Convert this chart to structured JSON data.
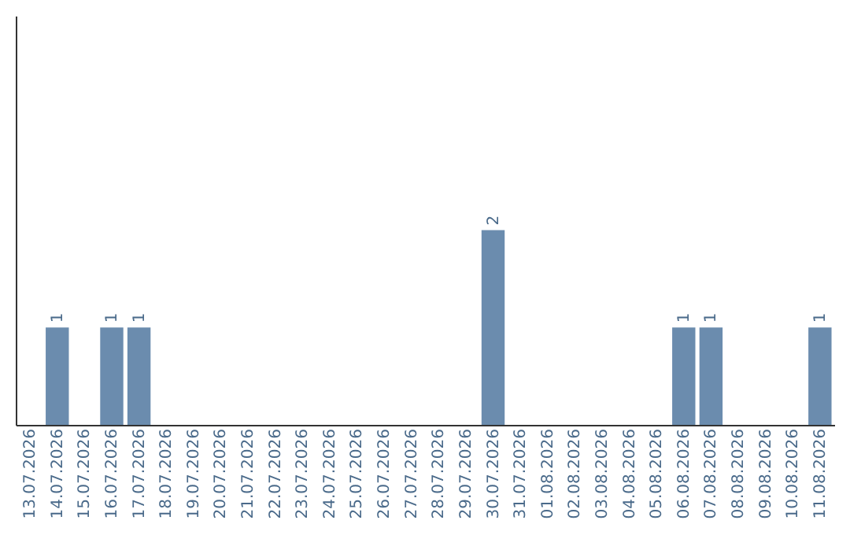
{
  "chart_data": {
    "type": "bar",
    "categories": [
      "13.07.2026",
      "14.07.2026",
      "15.07.2026",
      "16.07.2026",
      "17.07.2026",
      "18.07.2026",
      "19.07.2026",
      "20.07.2026",
      "21.07.2026",
      "22.07.2026",
      "23.07.2026",
      "24.07.2026",
      "25.07.2026",
      "26.07.2026",
      "27.07.2026",
      "28.07.2026",
      "29.07.2026",
      "30.07.2026",
      "31.07.2026",
      "01.08.2026",
      "02.08.2026",
      "03.08.2026",
      "04.08.2026",
      "05.08.2026",
      "06.08.2026",
      "07.08.2026",
      "08.08.2026",
      "09.08.2026",
      "10.08.2026",
      "11.08.2026"
    ],
    "values": [
      0,
      1,
      0,
      1,
      1,
      0,
      0,
      0,
      0,
      0,
      0,
      0,
      0,
      0,
      0,
      0,
      0,
      2,
      0,
      0,
      0,
      0,
      0,
      0,
      1,
      1,
      0,
      0,
      0,
      1
    ],
    "value_labels": [
      null,
      "1",
      null,
      "1",
      "1",
      null,
      null,
      null,
      null,
      null,
      null,
      null,
      null,
      null,
      null,
      null,
      null,
      "2",
      null,
      null,
      null,
      null,
      null,
      null,
      "1",
      "1",
      null,
      null,
      null,
      "1"
    ],
    "color": "#6b8cae",
    "ylim": [
      0,
      4.2
    ],
    "tick_labels": "x",
    "grid": false
  }
}
